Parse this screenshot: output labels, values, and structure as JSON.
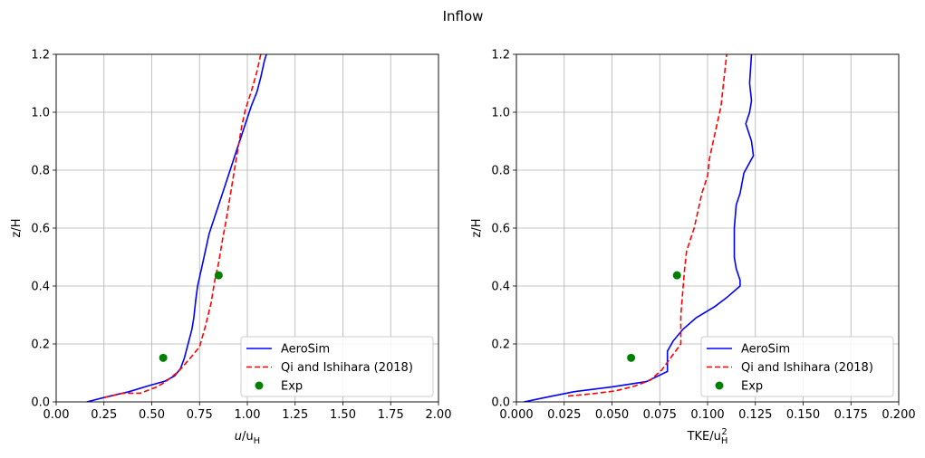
{
  "figure": {
    "title": "Inflow"
  },
  "chart_data": [
    {
      "type": "line",
      "xlabel_main": "u",
      "xlabel_sub1": "/u",
      "xlabel_sub2": "H",
      "ylabel": "z/H",
      "xlim": [
        0,
        2.0
      ],
      "ylim": [
        0,
        1.2
      ],
      "xticks": [
        "0.00",
        "0.25",
        "0.50",
        "0.75",
        "1.00",
        "1.25",
        "1.50",
        "1.75",
        "2.00"
      ],
      "yticks": [
        "0.0",
        "0.2",
        "0.4",
        "0.6",
        "0.8",
        "1.0",
        "1.2"
      ],
      "grid": true,
      "legend_position": "lower-right",
      "series": [
        {
          "name": "AeroSim",
          "style": "solid",
          "color": "#0000ff",
          "points": [
            [
              0.16,
              0.0
            ],
            [
              0.25,
              0.015
            ],
            [
              0.38,
              0.035
            ],
            [
              0.48,
              0.055
            ],
            [
              0.57,
              0.072
            ],
            [
              0.62,
              0.09
            ],
            [
              0.65,
              0.115
            ],
            [
              0.67,
              0.15
            ],
            [
              0.69,
              0.2
            ],
            [
              0.71,
              0.25
            ],
            [
              0.72,
              0.29
            ],
            [
              0.73,
              0.35
            ],
            [
              0.74,
              0.4
            ],
            [
              0.76,
              0.46
            ],
            [
              0.78,
              0.52
            ],
            [
              0.8,
              0.58
            ],
            [
              0.83,
              0.64
            ],
            [
              0.87,
              0.72
            ],
            [
              0.91,
              0.8
            ],
            [
              0.95,
              0.88
            ],
            [
              0.99,
              0.96
            ],
            [
              1.02,
              1.02
            ],
            [
              1.05,
              1.07
            ],
            [
              1.07,
              1.12
            ],
            [
              1.09,
              1.18
            ],
            [
              1.1,
              1.2
            ]
          ]
        },
        {
          "name": "Qi and Ishihara (2018)",
          "style": "dashed",
          "color": "#ff0000",
          "points": [
            [
              0.25,
              0.015
            ],
            [
              0.35,
              0.03
            ],
            [
              0.44,
              0.03
            ],
            [
              0.52,
              0.05
            ],
            [
              0.57,
              0.068
            ],
            [
              0.64,
              0.105
            ],
            [
              0.7,
              0.15
            ],
            [
              0.75,
              0.19
            ],
            [
              0.78,
              0.26
            ],
            [
              0.81,
              0.34
            ],
            [
              0.83,
              0.42
            ],
            [
              0.85,
              0.48
            ],
            [
              0.87,
              0.56
            ],
            [
              0.89,
              0.63
            ],
            [
              0.91,
              0.71
            ],
            [
              0.93,
              0.79
            ],
            [
              0.95,
              0.87
            ],
            [
              0.97,
              0.95
            ],
            [
              0.99,
              1.01
            ],
            [
              1.02,
              1.07
            ],
            [
              1.05,
              1.14
            ],
            [
              1.07,
              1.2
            ]
          ]
        },
        {
          "name": "Exp",
          "style": "marker",
          "color": "#008000",
          "points": [
            [
              0.56,
              0.152
            ],
            [
              0.85,
              0.437
            ]
          ]
        }
      ]
    },
    {
      "type": "line",
      "xlabel_main": "TKE/u",
      "xlabel_sub": "H",
      "xlabel_sup": "2",
      "ylabel": "z/H",
      "xlim": [
        0,
        0.2
      ],
      "ylim": [
        0,
        1.2
      ],
      "xticks": [
        "0.000",
        "0.025",
        "0.050",
        "0.075",
        "0.100",
        "0.125",
        "0.150",
        "0.175",
        "0.200"
      ],
      "yticks": [
        "0.0",
        "0.2",
        "0.4",
        "0.6",
        "0.8",
        "1.0",
        "1.2"
      ],
      "grid": true,
      "legend_position": "lower-right",
      "series": [
        {
          "name": "AeroSim",
          "style": "solid",
          "color": "#0000ff",
          "points": [
            [
              0.004,
              0.0
            ],
            [
              0.015,
              0.015
            ],
            [
              0.03,
              0.035
            ],
            [
              0.05,
              0.052
            ],
            [
              0.068,
              0.07
            ],
            [
              0.079,
              0.105
            ],
            [
              0.079,
              0.175
            ],
            [
              0.082,
              0.21
            ],
            [
              0.087,
              0.25
            ],
            [
              0.094,
              0.29
            ],
            [
              0.104,
              0.33
            ],
            [
              0.11,
              0.36
            ],
            [
              0.117,
              0.4
            ],
            [
              0.117,
              0.42
            ],
            [
              0.115,
              0.46
            ],
            [
              0.114,
              0.5
            ],
            [
              0.114,
              0.6
            ],
            [
              0.115,
              0.68
            ],
            [
              0.117,
              0.72
            ],
            [
              0.119,
              0.79
            ],
            [
              0.124,
              0.85
            ],
            [
              0.123,
              0.9
            ],
            [
              0.12,
              0.96
            ],
            [
              0.122,
              1.0
            ],
            [
              0.123,
              1.04
            ],
            [
              0.122,
              1.1
            ],
            [
              0.123,
              1.2
            ]
          ]
        },
        {
          "name": "Qi and Ishihara (2018)",
          "style": "dashed",
          "color": "#ff0000",
          "points": [
            [
              0.027,
              0.02
            ],
            [
              0.04,
              0.028
            ],
            [
              0.052,
              0.038
            ],
            [
              0.062,
              0.055
            ],
            [
              0.07,
              0.075
            ],
            [
              0.076,
              0.11
            ],
            [
              0.086,
              0.2
            ],
            [
              0.086,
              0.3
            ],
            [
              0.087,
              0.38
            ],
            [
              0.088,
              0.46
            ],
            [
              0.089,
              0.52
            ],
            [
              0.091,
              0.56
            ],
            [
              0.093,
              0.6
            ],
            [
              0.095,
              0.66
            ],
            [
              0.097,
              0.72
            ],
            [
              0.1,
              0.78
            ],
            [
              0.101,
              0.84
            ],
            [
              0.103,
              0.9
            ],
            [
              0.105,
              0.96
            ],
            [
              0.107,
              1.02
            ],
            [
              0.108,
              1.08
            ],
            [
              0.109,
              1.14
            ],
            [
              0.11,
              1.2
            ]
          ]
        },
        {
          "name": "Exp",
          "style": "marker",
          "color": "#008000",
          "points": [
            [
              0.06,
              0.152
            ],
            [
              0.084,
              0.437
            ]
          ]
        }
      ]
    }
  ]
}
